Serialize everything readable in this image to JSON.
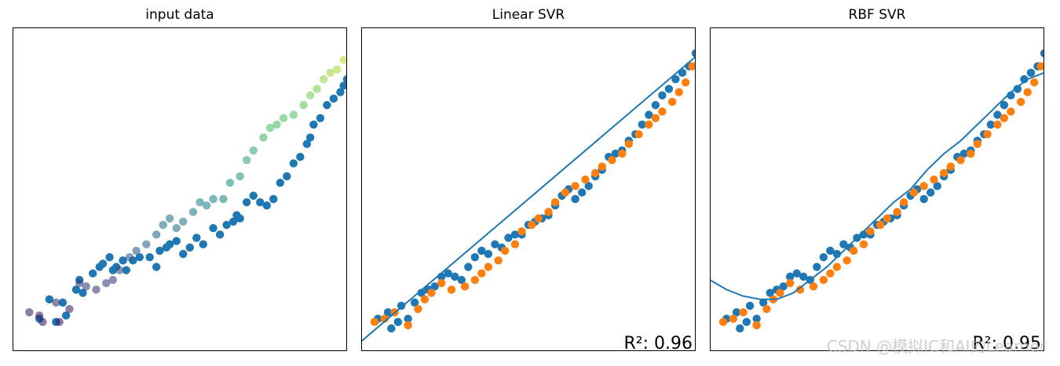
{
  "figure": {
    "watermark": "CSDN @模拟IC和AI的Learner"
  },
  "colors": {
    "blue": "#1f77b4",
    "orange": "#ff7f0e",
    "line": "#1f77b4",
    "colormap": [
      "#440154",
      "#3b528b",
      "#21918c",
      "#5ec962",
      "#fde725"
    ]
  },
  "chart_data": [
    {
      "type": "scatter",
      "title": "input data",
      "xlabel": "",
      "ylabel": "",
      "xlim": [
        0,
        100
      ],
      "ylim": [
        0,
        100
      ],
      "ticks": false,
      "series": [
        {
          "color_role": "blue",
          "points": [
            [
              8,
              10
            ],
            [
              11,
              16
            ],
            [
              13,
              9
            ],
            [
              15,
              15
            ],
            [
              16,
              11
            ],
            [
              19,
              19
            ],
            [
              20,
              22
            ],
            [
              21,
              18
            ],
            [
              24,
              24
            ],
            [
              26,
              26
            ],
            [
              27,
              27
            ],
            [
              29,
              29
            ],
            [
              30,
              25
            ],
            [
              31,
              26
            ],
            [
              33,
              28
            ],
            [
              34,
              25
            ],
            [
              36,
              28
            ],
            [
              38,
              29
            ],
            [
              41,
              29
            ],
            [
              43,
              26
            ],
            [
              44,
              31
            ],
            [
              46,
              32
            ],
            [
              47,
              33
            ],
            [
              49,
              34
            ],
            [
              51,
              30
            ],
            [
              53,
              32
            ],
            [
              55,
              35
            ],
            [
              57,
              33
            ],
            [
              60,
              38
            ],
            [
              62,
              36
            ],
            [
              64,
              39
            ],
            [
              66,
              40
            ],
            [
              67,
              42
            ],
            [
              68,
              41
            ],
            [
              70,
              46
            ],
            [
              72,
              48
            ],
            [
              74,
              46
            ],
            [
              76,
              45
            ],
            [
              78,
              47
            ],
            [
              80,
              52
            ],
            [
              82,
              54
            ],
            [
              84,
              58
            ],
            [
              86,
              60
            ],
            [
              88,
              64
            ],
            [
              89,
              66
            ],
            [
              90,
              70
            ],
            [
              92,
              72
            ],
            [
              94,
              76
            ],
            [
              96,
              78
            ],
            [
              98,
              80
            ],
            [
              99,
              82
            ],
            [
              100,
              84
            ]
          ]
        },
        {
          "color_role": "colormap",
          "points": [
            [
              5,
              12
            ],
            [
              8,
              11
            ],
            [
              9,
              9
            ],
            [
              13,
              15
            ],
            [
              14,
              9
            ],
            [
              17,
              13
            ],
            [
              20,
              21
            ],
            [
              22,
              20
            ],
            [
              25,
              19
            ],
            [
              28,
              21
            ],
            [
              30,
              22
            ],
            [
              32,
              25
            ],
            [
              35,
              29
            ],
            [
              37,
              31
            ],
            [
              40,
              33
            ],
            [
              43,
              36
            ],
            [
              45,
              39
            ],
            [
              47,
              41
            ],
            [
              49,
              38
            ],
            [
              51,
              40
            ],
            [
              54,
              43
            ],
            [
              56,
              46
            ],
            [
              58,
              45
            ],
            [
              60,
              47
            ],
            [
              63,
              47
            ],
            [
              65,
              52
            ],
            [
              68,
              54
            ],
            [
              70,
              59
            ],
            [
              72,
              62
            ],
            [
              75,
              66
            ],
            [
              77,
              69
            ],
            [
              79,
              70
            ],
            [
              81,
              72
            ],
            [
              84,
              73
            ],
            [
              87,
              76
            ],
            [
              89,
              79
            ],
            [
              91,
              81
            ],
            [
              93,
              84
            ],
            [
              95,
              86
            ],
            [
              97,
              87
            ],
            [
              99,
              90
            ]
          ]
        }
      ]
    },
    {
      "type": "scatter",
      "title": "Linear SVR",
      "xlabel": "",
      "ylabel": "",
      "xlim": [
        0,
        100
      ],
      "ylim": [
        0,
        100
      ],
      "ticks": false,
      "annotation": "R²: 0.96",
      "series": [
        {
          "color_role": "blue",
          "points": [
            [
              5,
              10
            ],
            [
              8,
              12
            ],
            [
              9,
              7
            ],
            [
              11,
              9
            ],
            [
              12,
              14
            ],
            [
              14,
              10
            ],
            [
              16,
              15
            ],
            [
              18,
              18
            ],
            [
              20,
              19
            ],
            [
              22,
              20
            ],
            [
              24,
              23
            ],
            [
              26,
              24
            ],
            [
              28,
              23
            ],
            [
              30,
              22
            ],
            [
              32,
              26
            ],
            [
              34,
              29
            ],
            [
              36,
              31
            ],
            [
              38,
              30
            ],
            [
              40,
              33
            ],
            [
              42,
              32
            ],
            [
              44,
              35
            ],
            [
              46,
              36
            ],
            [
              48,
              36
            ],
            [
              50,
              39
            ],
            [
              52,
              40
            ],
            [
              54,
              41
            ],
            [
              56,
              42
            ],
            [
              58,
              45
            ],
            [
              60,
              48
            ],
            [
              62,
              50
            ],
            [
              64,
              47
            ],
            [
              66,
              49
            ],
            [
              68,
              51
            ],
            [
              70,
              54
            ],
            [
              72,
              56
            ],
            [
              74,
              60
            ],
            [
              76,
              61
            ],
            [
              78,
              62
            ],
            [
              80,
              65
            ],
            [
              82,
              67
            ],
            [
              84,
              70
            ],
            [
              86,
              73
            ],
            [
              88,
              76
            ],
            [
              90,
              79
            ],
            [
              92,
              81
            ],
            [
              94,
              84
            ],
            [
              96,
              86
            ],
            [
              98,
              88
            ],
            [
              100,
              92
            ]
          ]
        },
        {
          "color_role": "orange",
          "points": [
            [
              4,
              9
            ],
            [
              7,
              10
            ],
            [
              10,
              12
            ],
            [
              14,
              8
            ],
            [
              17,
              13
            ],
            [
              19,
              16
            ],
            [
              21,
              18
            ],
            [
              24,
              21
            ],
            [
              27,
              19
            ],
            [
              31,
              20
            ],
            [
              34,
              22
            ],
            [
              36,
              24
            ],
            [
              38,
              26
            ],
            [
              41,
              28
            ],
            [
              43,
              31
            ],
            [
              46,
              33
            ],
            [
              48,
              37
            ],
            [
              51,
              39
            ],
            [
              53,
              41
            ],
            [
              56,
              43
            ],
            [
              58,
              46
            ],
            [
              61,
              49
            ],
            [
              64,
              51
            ],
            [
              67,
              53
            ],
            [
              70,
              55
            ],
            [
              72,
              57
            ],
            [
              75,
              59
            ],
            [
              78,
              61
            ],
            [
              80,
              64
            ],
            [
              83,
              67
            ],
            [
              86,
              70
            ],
            [
              88,
              72
            ],
            [
              90,
              74
            ],
            [
              93,
              77
            ],
            [
              95,
              80
            ],
            [
              97,
              83
            ],
            [
              99,
              88
            ]
          ]
        }
      ],
      "fit_line": {
        "x": [
          0,
          100
        ],
        "y": [
          3,
          91
        ]
      }
    },
    {
      "type": "scatter",
      "title": "RBF SVR",
      "xlabel": "",
      "ylabel": "",
      "xlim": [
        0,
        100
      ],
      "ylim": [
        0,
        100
      ],
      "ticks": false,
      "annotation": "R²: 0.95",
      "series": [
        {
          "color_role": "blue",
          "points": [
            [
              5,
              10
            ],
            [
              8,
              12
            ],
            [
              9,
              7
            ],
            [
              11,
              9
            ],
            [
              12,
              14
            ],
            [
              14,
              10
            ],
            [
              16,
              15
            ],
            [
              18,
              18
            ],
            [
              20,
              19
            ],
            [
              22,
              20
            ],
            [
              24,
              23
            ],
            [
              26,
              24
            ],
            [
              28,
              23
            ],
            [
              30,
              22
            ],
            [
              32,
              26
            ],
            [
              34,
              29
            ],
            [
              36,
              31
            ],
            [
              38,
              30
            ],
            [
              40,
              33
            ],
            [
              42,
              32
            ],
            [
              44,
              35
            ],
            [
              46,
              36
            ],
            [
              48,
              36
            ],
            [
              50,
              39
            ],
            [
              52,
              40
            ],
            [
              54,
              41
            ],
            [
              56,
              42
            ],
            [
              58,
              45
            ],
            [
              60,
              48
            ],
            [
              62,
              50
            ],
            [
              64,
              47
            ],
            [
              66,
              49
            ],
            [
              68,
              51
            ],
            [
              70,
              54
            ],
            [
              72,
              56
            ],
            [
              74,
              60
            ],
            [
              76,
              61
            ],
            [
              78,
              62
            ],
            [
              80,
              65
            ],
            [
              82,
              67
            ],
            [
              84,
              70
            ],
            [
              86,
              73
            ],
            [
              88,
              76
            ],
            [
              90,
              79
            ],
            [
              92,
              81
            ],
            [
              94,
              84
            ],
            [
              96,
              86
            ],
            [
              98,
              88
            ],
            [
              100,
              92
            ]
          ]
        },
        {
          "color_role": "orange",
          "points": [
            [
              4,
              9
            ],
            [
              7,
              10
            ],
            [
              10,
              12
            ],
            [
              14,
              8
            ],
            [
              17,
              13
            ],
            [
              19,
              16
            ],
            [
              21,
              18
            ],
            [
              24,
              21
            ],
            [
              27,
              19
            ],
            [
              31,
              20
            ],
            [
              34,
              22
            ],
            [
              36,
              24
            ],
            [
              38,
              26
            ],
            [
              41,
              28
            ],
            [
              43,
              31
            ],
            [
              46,
              33
            ],
            [
              48,
              37
            ],
            [
              51,
              39
            ],
            [
              53,
              41
            ],
            [
              56,
              43
            ],
            [
              58,
              46
            ],
            [
              61,
              49
            ],
            [
              64,
              51
            ],
            [
              67,
              53
            ],
            [
              70,
              55
            ],
            [
              72,
              57
            ],
            [
              75,
              59
            ],
            [
              78,
              61
            ],
            [
              80,
              64
            ],
            [
              83,
              67
            ],
            [
              86,
              70
            ],
            [
              88,
              72
            ],
            [
              90,
              74
            ],
            [
              93,
              77
            ],
            [
              95,
              80
            ],
            [
              97,
              83
            ],
            [
              99,
              88
            ]
          ]
        }
      ],
      "fit_curve": {
        "x": [
          0,
          5,
          10,
          15,
          20,
          25,
          30,
          35,
          40,
          45,
          50,
          55,
          60,
          65,
          70,
          75,
          80,
          85,
          90,
          95,
          100
        ],
        "y": [
          22,
          19,
          17,
          16,
          16,
          18,
          22,
          26,
          31,
          36,
          41,
          46,
          50,
          56,
          61,
          65,
          70,
          75,
          80,
          84,
          86
        ]
      }
    }
  ]
}
